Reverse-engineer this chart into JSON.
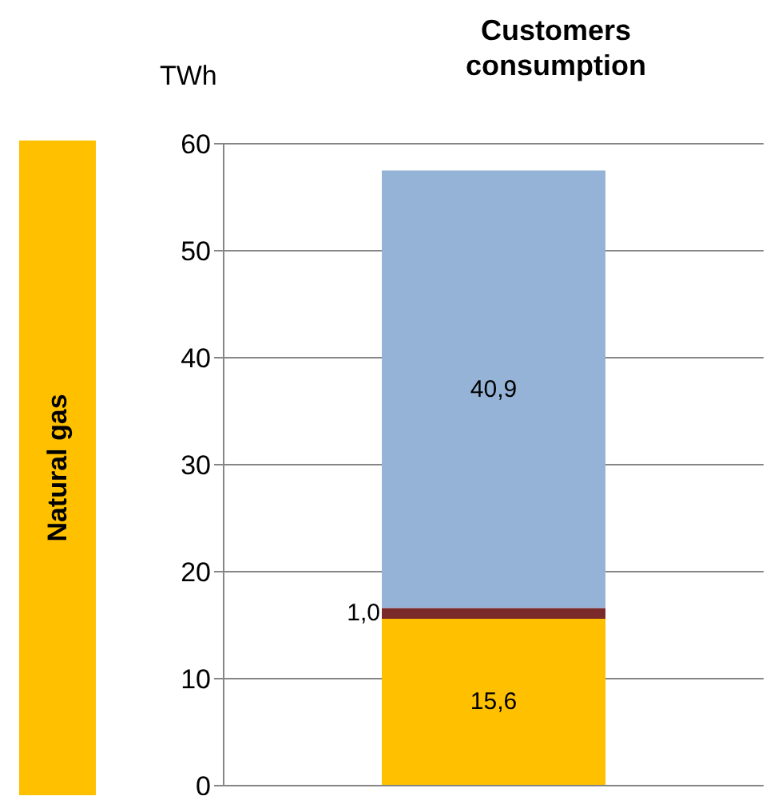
{
  "chart_data": {
    "type": "bar",
    "title": "Customers consumption",
    "ylabel": "TWh",
    "annotations": [
      "Natural gas"
    ],
    "categories": [
      null
    ],
    "stacked": true,
    "series": [
      {
        "color": "#ffc000",
        "values": [
          15.6
        ],
        "value_labels": [
          "15,6"
        ]
      },
      {
        "color": "#7b2a2a",
        "values": [
          1.0
        ],
        "value_labels": [
          "1,0"
        ]
      },
      {
        "color": "#95b3d7",
        "values": [
          40.9
        ],
        "value_labels": [
          "40,9"
        ]
      }
    ],
    "ylim": [
      0,
      60
    ],
    "yticks": [
      0,
      10,
      20,
      30,
      40,
      50,
      60
    ],
    "grid": "y"
  }
}
